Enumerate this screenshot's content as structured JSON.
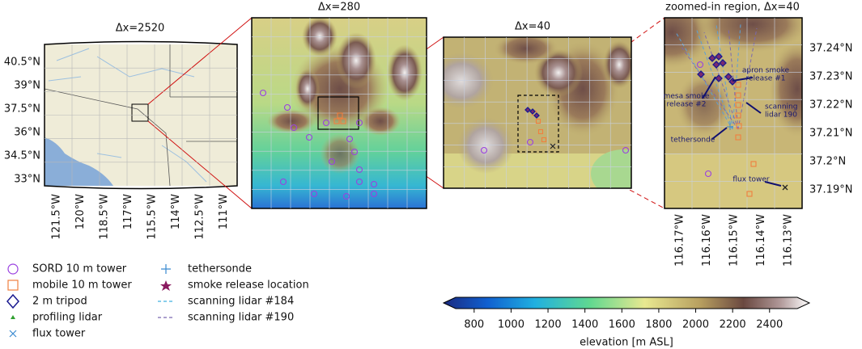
{
  "panels": [
    {
      "title": "Δx=2520",
      "y_labels": [
        "40.5°N",
        "39°N",
        "37.5°N",
        "36°N",
        "34.5°N",
        "33°N"
      ],
      "x_labels": [
        "121.5°W",
        "120°W",
        "118.5°W",
        "117°W",
        "115.5°W",
        "114°W",
        "112.5°W",
        "111°W"
      ]
    },
    {
      "title": "Δx=280"
    },
    {
      "title": "Δx=40"
    },
    {
      "title": "zoomed-in region, Δx=40",
      "y_labels": [
        "37.24°N",
        "37.23°N",
        "37.22°N",
        "37.21°N",
        "37.2°N",
        "37.19°N"
      ],
      "x_labels": [
        "116.17°W",
        "116.16°W",
        "116.15°W",
        "116.14°W",
        "116.13°W"
      ],
      "annotations": [
        [
          "apron smoke",
          "release #1"
        ],
        [
          "mesa smoke",
          "release #2"
        ],
        [
          "scanning",
          "lidar 190"
        ],
        [
          "tethersonde"
        ],
        [
          "flux tower"
        ]
      ]
    }
  ],
  "legend": [
    "SORD 10 m tower",
    "mobile 10 m tower",
    "2 m tripod",
    "profiling lidar",
    "flux tower",
    "tethersonde",
    "smoke release location",
    "scanning lidar #184",
    "scanning lidar #190"
  ],
  "colorbar": {
    "label": "elevation [m ASL]",
    "lim": [
      700,
      2550
    ],
    "ticks": [
      800,
      1000,
      1200,
      1400,
      1600,
      1800,
      2000,
      2200,
      2400
    ]
  }
}
